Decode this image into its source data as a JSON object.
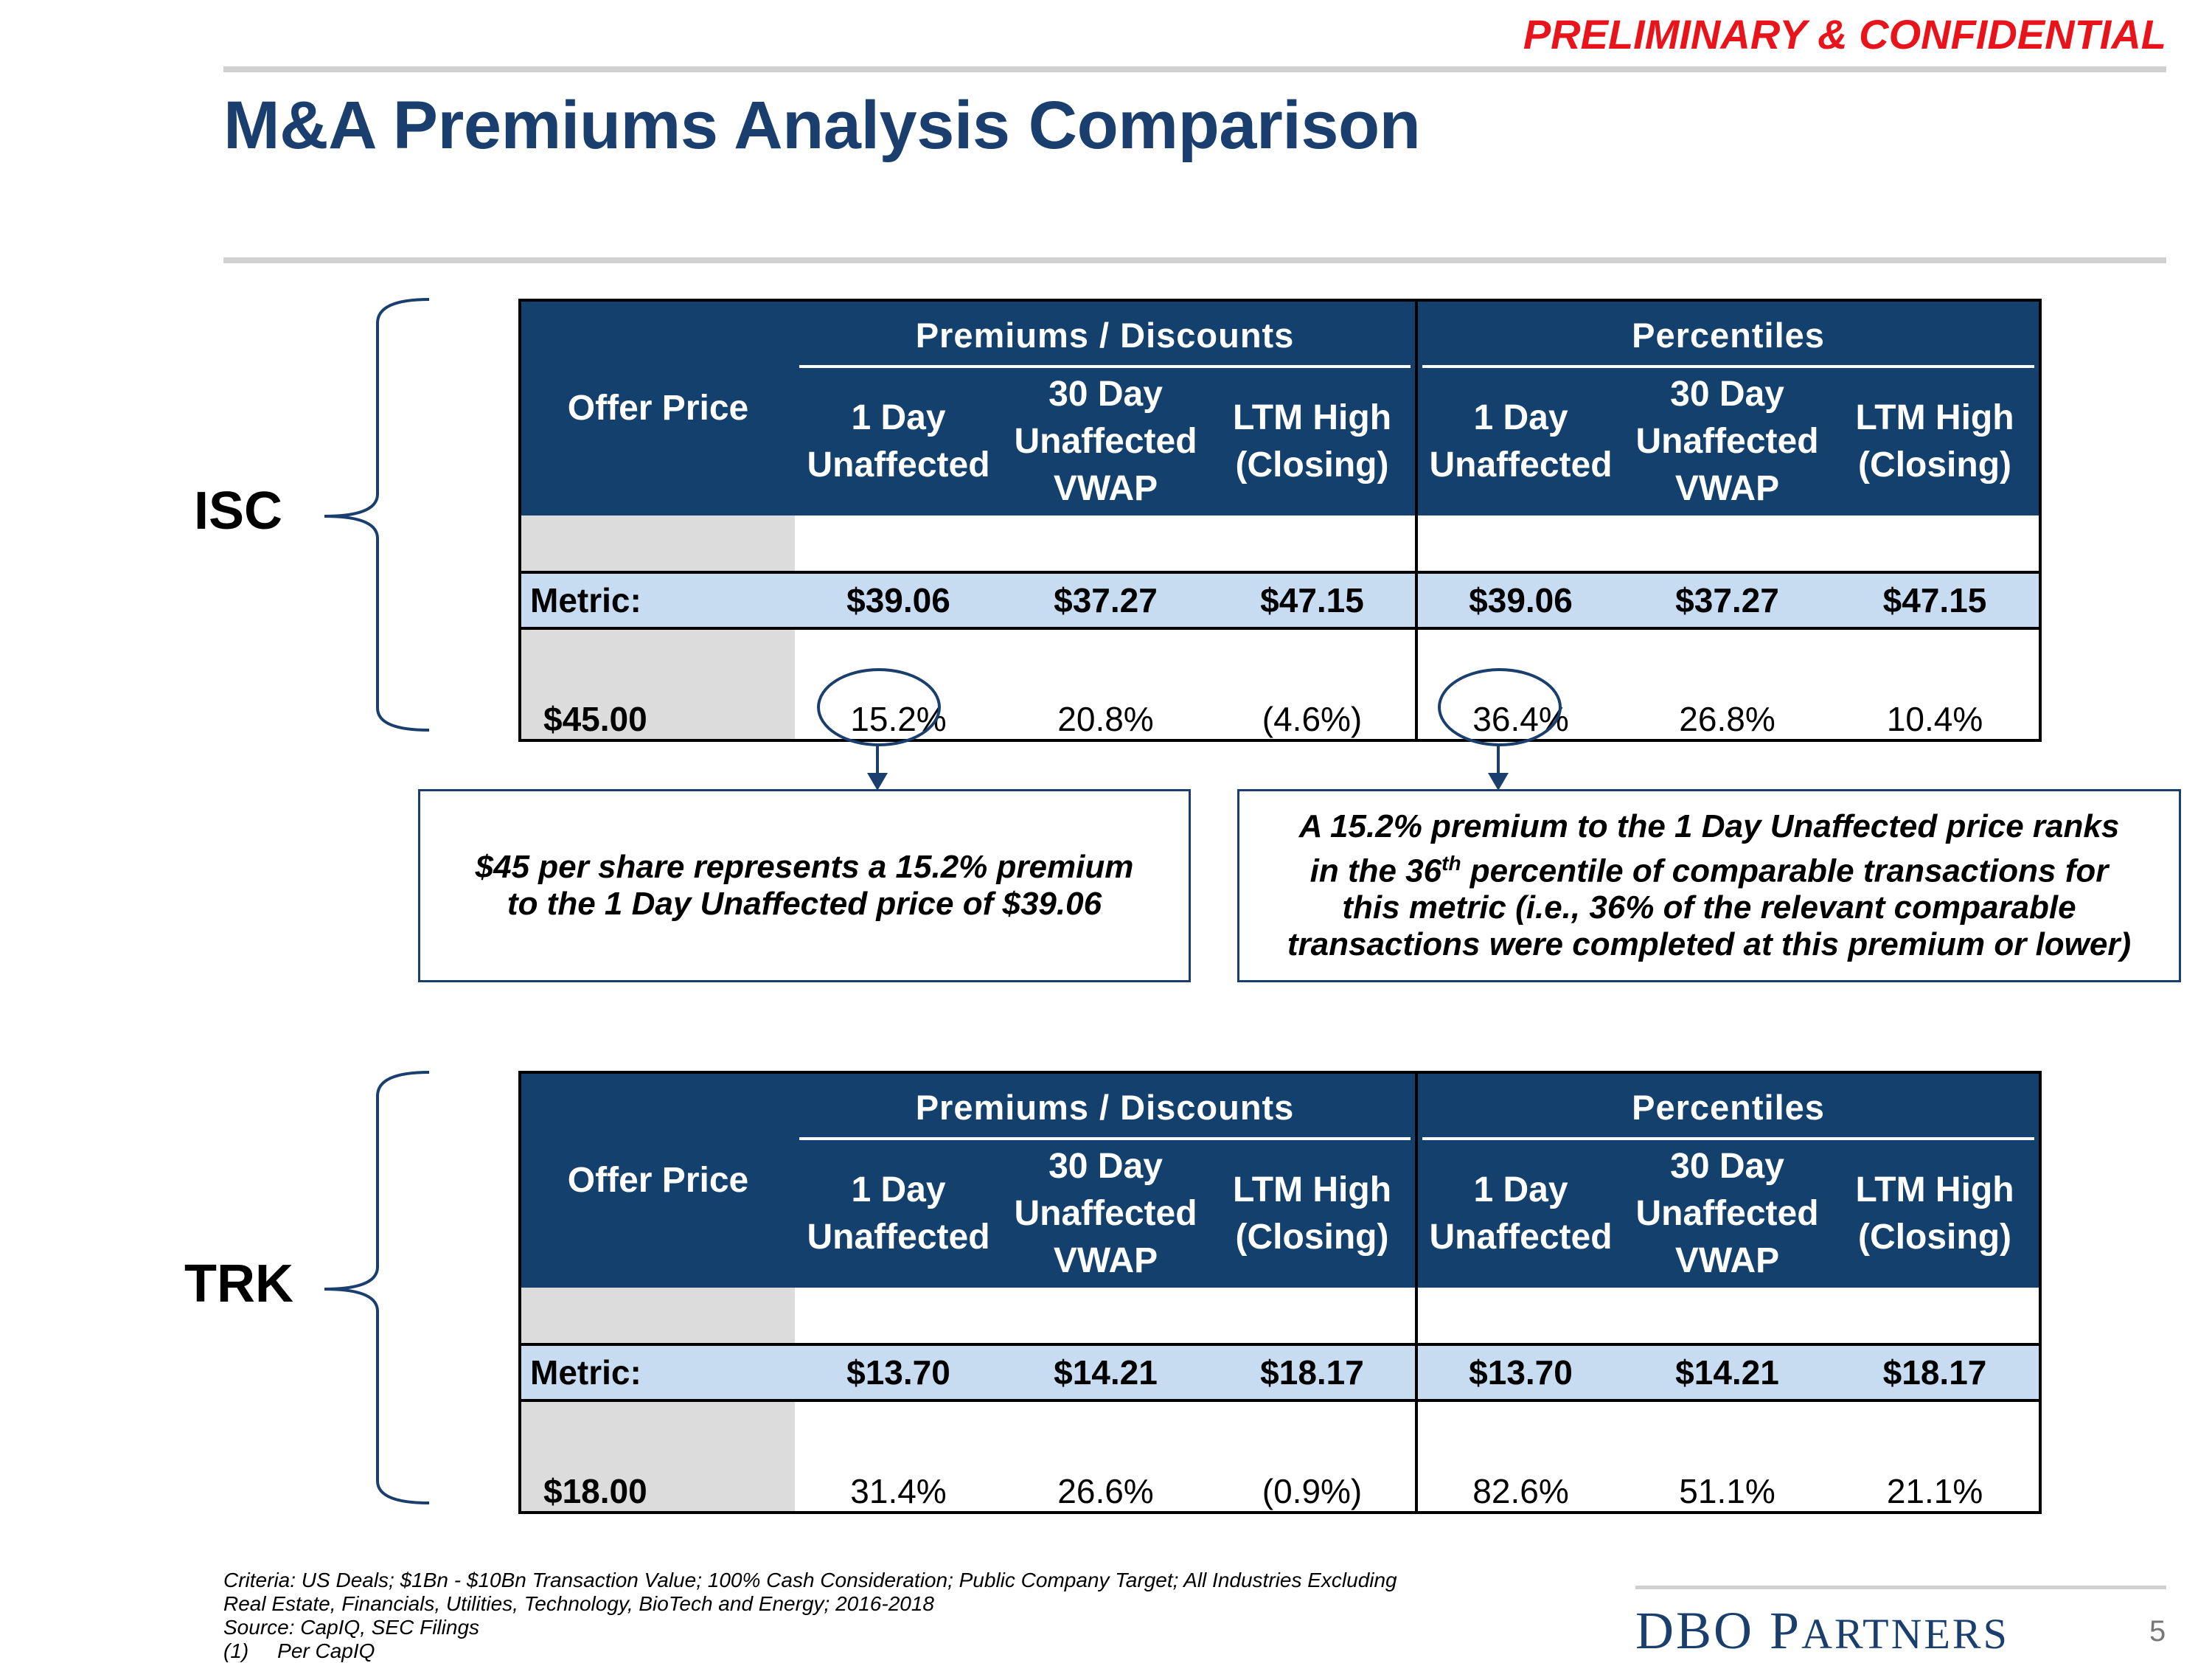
{
  "header": {
    "confidential": "PRELIMINARY & CONFIDENTIAL",
    "title": "M&A Premiums Analysis Comparison"
  },
  "col_headers": {
    "offer_price": "Offer Price",
    "group_premiums": "Premiums / Discounts",
    "group_percentiles": "Percentiles",
    "one_day": [
      "1 Day",
      "Unaffected"
    ],
    "thirty_day": [
      "30 Day",
      "Unaffected",
      "VWAP"
    ],
    "ltm": [
      "LTM High",
      "(Closing)"
    ]
  },
  "isc": {
    "label": "ISC",
    "metric_label": "Metric:",
    "metrics": [
      "$39.06",
      "$37.27",
      "$47.15",
      "$39.06",
      "$37.27",
      "$47.15"
    ],
    "offer": "$45.00",
    "values": [
      "15.2%",
      "20.8%",
      "(4.6%)",
      "36.4%",
      "26.8%",
      "10.4%"
    ]
  },
  "trk": {
    "label": "TRK",
    "metric_label": "Metric:",
    "metrics": [
      "$13.70",
      "$14.21",
      "$18.17",
      "$13.70",
      "$14.21",
      "$18.17"
    ],
    "offer": "$18.00",
    "values": [
      "31.4%",
      "26.6%",
      "(0.9%)",
      "82.6%",
      "51.1%",
      "21.1%"
    ]
  },
  "callouts": {
    "left": [
      "$45 per share represents a 15.2% premium",
      "to the 1 Day Unaffected price of $39.06"
    ],
    "right_line1": "A 15.2% premium to the 1 Day Unaffected price ranks",
    "right_line2_pre": "in the 36",
    "right_line2_sup": "th",
    "right_line2_post": " percentile of comparable transactions for",
    "right_line3": "this metric (i.e., 36% of the relevant comparable",
    "right_line4": "transactions were completed at this premium or lower)"
  },
  "footer": {
    "criteria": "Criteria: US Deals; $1Bn - $10Bn Transaction Value; 100% Cash Consideration; Public Company Target; All Industries Excluding",
    "criteria2": "Real Estate, Financials, Utilities, Technology, BioTech and Energy; 2016-2018",
    "source": "Source: CapIQ, SEC Filings",
    "note_num": "(1)",
    "note_text": "Per CapIQ",
    "logo_d": "DBO P",
    "logo_rest": "ARTNERS",
    "page_number": "5"
  },
  "colors": {
    "navy": "#14406d",
    "red": "#e8141b",
    "metric_row": "#c7dbf1",
    "gray": "#dcdcdc"
  }
}
